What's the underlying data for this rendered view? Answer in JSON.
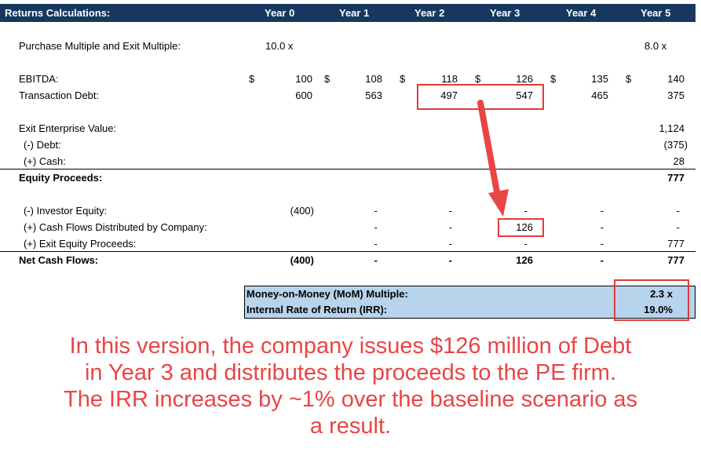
{
  "header": {
    "title": "Returns Calculations:",
    "years": [
      "Year 0",
      "Year 1",
      "Year 2",
      "Year 3",
      "Year 4",
      "Year 5"
    ]
  },
  "rows": {
    "multiple": {
      "label": "Purchase Multiple and Exit Multiple:",
      "y0": "10.0 x",
      "y5": "8.0 x"
    },
    "ebitda": {
      "label": "EBITDA:",
      "dollar": "$",
      "values": [
        "100",
        "108",
        "118",
        "126",
        "135",
        "140"
      ]
    },
    "debt": {
      "label": "Transaction Debt:",
      "values": [
        "600",
        "563",
        "497",
        "547",
        "465",
        "375"
      ]
    },
    "exit_ev": {
      "label": "Exit Enterprise Value:",
      "y5": "1,124"
    },
    "less_debt": {
      "label": "(-) Debt:",
      "y5": "(375)"
    },
    "plus_cash": {
      "label": "(+) Cash:",
      "y5": "28"
    },
    "equity_proceeds": {
      "label": "Equity Proceeds:",
      "y5": "777"
    },
    "investor_equity": {
      "label": "(-) Investor Equity:",
      "values": [
        "(400)",
        "-",
        "-",
        "-",
        "-",
        "-"
      ]
    },
    "cash_flows_dist": {
      "label": "(+) Cash Flows Distributed by Company:",
      "values": [
        "",
        "-",
        "-",
        "126",
        "-",
        "-"
      ]
    },
    "exit_equity": {
      "label": "(+) Exit Equity Proceeds:",
      "values": [
        "",
        "-",
        "-",
        "-",
        "-",
        "777"
      ]
    },
    "net_cash_flows": {
      "label": "Net Cash Flows:",
      "values": [
        "(400)",
        "-",
        "-",
        "126",
        "-",
        "777"
      ]
    }
  },
  "summary": {
    "mom_label": "Money-on-Money (MoM) Multiple:",
    "mom_value": "2.3 x",
    "irr_label": "Internal Rate of Return (IRR):",
    "irr_value": "19.0%"
  },
  "caption": {
    "line1": "In this version, the company issues $126 million of Debt",
    "line2": "in Year 3 and distributes the proceeds to the PE firm.",
    "line3": "The IRR increases by ~1% over the baseline scenario as",
    "line4": "a result."
  },
  "colors": {
    "header_bg": "#17375e",
    "summary_bg": "#b8d3ec",
    "highlight_red": "#e03c3c",
    "caption_red": "#e84545"
  }
}
